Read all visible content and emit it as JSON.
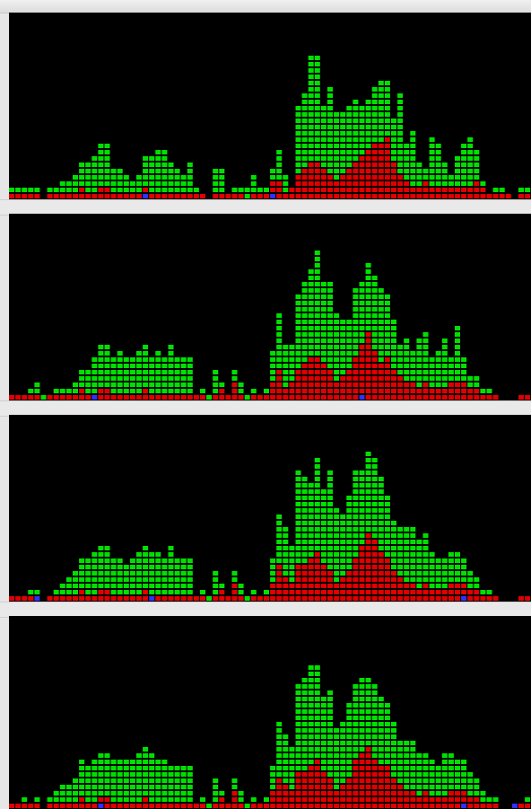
{
  "colors": {
    "background": "#000000",
    "stack_base": "#e00000",
    "stack_top": "#00e000",
    "marker": "#3030ff",
    "divider": "#e9e9e9"
  },
  "chart_data": [
    {
      "type": "bar",
      "stacked": true,
      "grid": false,
      "series": [
        {
          "values": [
            1,
            1,
            1,
            1,
            1,
            0,
            1,
            1,
            1,
            1,
            1,
            2,
            1,
            1,
            2,
            2,
            1,
            1,
            1,
            1,
            1,
            2,
            1,
            1,
            1,
            1,
            1,
            1,
            1,
            1,
            1,
            0,
            1,
            1,
            1,
            1,
            1,
            0,
            1,
            1,
            1,
            3,
            3,
            1,
            2,
            4,
            5,
            6,
            6,
            5,
            4,
            3,
            4,
            5,
            6,
            7,
            8,
            9,
            9,
            10,
            6,
            4,
            3,
            2,
            2,
            3,
            2,
            2,
            2,
            2,
            2,
            2,
            2,
            3,
            2,
            1,
            1,
            1,
            1,
            0,
            1,
            1
          ]
        },
        {
          "values": [
            1,
            1,
            1,
            1,
            1,
            0,
            1,
            1,
            2,
            2,
            3,
            4,
            5,
            6,
            7,
            7,
            4,
            4,
            3,
            2,
            3,
            5,
            6,
            7,
            7,
            5,
            4,
            3,
            5,
            1,
            0,
            0,
            4,
            4,
            0,
            1,
            1,
            2,
            3,
            1,
            1,
            2,
            5,
            3,
            0,
            11,
            12,
            17,
            17,
            10,
            14,
            11,
            10,
            10,
            10,
            8,
            8,
            9,
            10,
            9,
            7,
            13,
            6,
            9,
            4,
            2,
            8,
            7,
            4,
            2,
            5,
            7,
            8,
            5,
            1,
            0,
            1,
            1,
            0,
            0,
            1,
            1
          ]
        }
      ],
      "markers": [
        0,
        0,
        0,
        0,
        0,
        0,
        0,
        0,
        0,
        0,
        0,
        0,
        0,
        0,
        0,
        0,
        0,
        0,
        0,
        0,
        0,
        1,
        0,
        0,
        0,
        0,
        0,
        0,
        0,
        0,
        0,
        0,
        0,
        0,
        0,
        0,
        0,
        0,
        0,
        0,
        0,
        1,
        0,
        0,
        0,
        0,
        0,
        0,
        0,
        0,
        0,
        0,
        0,
        0,
        0,
        0,
        0,
        0,
        0,
        0,
        0,
        0,
        0,
        0,
        0,
        0,
        0,
        0,
        0,
        0,
        0,
        0,
        0,
        0,
        0,
        0,
        0,
        0,
        0,
        0,
        0,
        0
      ],
      "ylim": [
        0,
        26
      ]
    },
    {
      "type": "bar",
      "stacked": true,
      "grid": false,
      "series": [
        {
          "values": [
            1,
            1,
            1,
            1,
            1,
            0,
            1,
            1,
            1,
            1,
            1,
            2,
            1,
            1,
            2,
            2,
            1,
            1,
            1,
            1,
            1,
            2,
            1,
            1,
            1,
            1,
            1,
            1,
            1,
            1,
            1,
            0,
            1,
            2,
            1,
            3,
            1,
            0,
            1,
            1,
            1,
            3,
            5,
            2,
            3,
            5,
            6,
            7,
            7,
            6,
            5,
            3,
            4,
            5,
            7,
            9,
            11,
            8,
            6,
            7,
            5,
            4,
            3,
            3,
            2,
            3,
            2,
            2,
            2,
            3,
            3,
            3,
            2,
            2,
            1,
            1,
            1,
            0,
            0,
            0,
            1,
            1
          ]
        },
        {
          "values": [
            0,
            0,
            0,
            1,
            2,
            1,
            0,
            1,
            1,
            1,
            2,
            3,
            4,
            6,
            7,
            7,
            6,
            7,
            6,
            6,
            7,
            7,
            6,
            7,
            6,
            8,
            6,
            6,
            6,
            0,
            1,
            1,
            4,
            1,
            0,
            2,
            2,
            1,
            1,
            0,
            1,
            5,
            9,
            7,
            6,
            12,
            13,
            14,
            17,
            13,
            14,
            11,
            9,
            8,
            11,
            10,
            11,
            12,
            12,
            10,
            8,
            5,
            7,
            5,
            8,
            8,
            5,
            6,
            8,
            4,
            9,
            4,
            2,
            2,
            1,
            1,
            0,
            0,
            0,
            0,
            0,
            0
          ]
        }
      ],
      "markers": [
        0,
        0,
        0,
        0,
        0,
        0,
        0,
        0,
        0,
        0,
        0,
        0,
        0,
        1,
        0,
        0,
        0,
        0,
        0,
        0,
        0,
        0,
        0,
        0,
        0,
        0,
        0,
        0,
        0,
        0,
        0,
        0,
        0,
        0,
        0,
        0,
        0,
        0,
        0,
        0,
        0,
        0,
        0,
        0,
        0,
        0,
        0,
        0,
        0,
        0,
        0,
        0,
        0,
        0,
        0,
        1,
        0,
        0,
        0,
        0,
        0,
        0,
        0,
        0,
        0,
        0,
        0,
        0,
        0,
        0,
        0,
        0,
        0,
        0,
        0,
        0,
        0,
        0,
        0,
        0,
        0,
        0
      ],
      "ylim": [
        0,
        26
      ]
    },
    {
      "type": "bar",
      "stacked": true,
      "grid": false,
      "series": [
        {
          "values": [
            1,
            1,
            1,
            1,
            1,
            0,
            1,
            1,
            1,
            1,
            1,
            2,
            1,
            1,
            2,
            2,
            1,
            1,
            1,
            1,
            1,
            2,
            1,
            1,
            1,
            1,
            1,
            1,
            1,
            1,
            1,
            0,
            1,
            2,
            1,
            3,
            1,
            0,
            1,
            1,
            1,
            3,
            6,
            4,
            3,
            6,
            6,
            7,
            8,
            6,
            5,
            3,
            4,
            5,
            7,
            9,
            11,
            10,
            8,
            7,
            5,
            4,
            3,
            3,
            2,
            3,
            2,
            2,
            2,
            3,
            3,
            3,
            2,
            2,
            1,
            1,
            1,
            0,
            0,
            0,
            1,
            1
          ]
        },
        {
          "values": [
            0,
            0,
            0,
            1,
            1,
            0,
            0,
            1,
            2,
            3,
            4,
            5,
            6,
            7,
            7,
            7,
            6,
            6,
            5,
            6,
            7,
            7,
            7,
            7,
            6,
            8,
            6,
            6,
            6,
            0,
            1,
            1,
            4,
            1,
            0,
            2,
            2,
            1,
            1,
            0,
            1,
            4,
            8,
            8,
            6,
            15,
            14,
            12,
            15,
            12,
            16,
            12,
            10,
            12,
            14,
            12,
            13,
            13,
            12,
            10,
            8,
            8,
            9,
            9,
            8,
            8,
            6,
            5,
            5,
            5,
            5,
            4,
            3,
            2,
            1,
            1,
            0,
            0,
            0,
            0,
            0,
            0
          ]
        }
      ],
      "markers": [
        0,
        0,
        0,
        0,
        1,
        0,
        0,
        0,
        0,
        0,
        0,
        0,
        0,
        0,
        0,
        0,
        0,
        0,
        0,
        0,
        0,
        0,
        1,
        0,
        0,
        0,
        0,
        0,
        0,
        0,
        0,
        0,
        0,
        0,
        0,
        0,
        0,
        0,
        0,
        0,
        0,
        0,
        0,
        0,
        0,
        0,
        0,
        0,
        0,
        0,
        0,
        0,
        0,
        0,
        0,
        0,
        0,
        0,
        0,
        0,
        0,
        0,
        0,
        0,
        0,
        0,
        0,
        0,
        0,
        0,
        0,
        1,
        0,
        0,
        0,
        0,
        0,
        0,
        0,
        0,
        0,
        0
      ],
      "ylim": [
        0,
        26
      ]
    },
    {
      "type": "bar",
      "stacked": true,
      "grid": false,
      "series": [
        {
          "values": [
            1,
            1,
            1,
            1,
            1,
            0,
            1,
            1,
            1,
            1,
            1,
            2,
            1,
            1,
            2,
            2,
            1,
            1,
            1,
            1,
            1,
            2,
            1,
            1,
            1,
            1,
            1,
            1,
            1,
            1,
            1,
            0,
            1,
            2,
            1,
            3,
            1,
            0,
            1,
            1,
            1,
            3,
            5,
            4,
            3,
            6,
            6,
            7,
            8,
            6,
            5,
            3,
            4,
            5,
            8,
            9,
            10,
            8,
            7,
            7,
            5,
            4,
            3,
            3,
            2,
            3,
            2,
            2,
            2,
            3,
            3,
            3,
            2,
            2,
            1,
            1,
            1,
            0,
            0,
            0,
            1,
            1
          ]
        },
        {
          "values": [
            0,
            0,
            1,
            0,
            1,
            0,
            1,
            2,
            3,
            3,
            4,
            6,
            6,
            7,
            7,
            7,
            7,
            7,
            7,
            7,
            8,
            8,
            8,
            7,
            7,
            6,
            6,
            6,
            6,
            0,
            1,
            1,
            4,
            1,
            0,
            2,
            2,
            1,
            1,
            0,
            1,
            4,
            9,
            8,
            7,
            14,
            15,
            16,
            15,
            12,
            14,
            10,
            10,
            12,
            12,
            12,
            11,
            12,
            11,
            10,
            9,
            7,
            8,
            8,
            7,
            6,
            6,
            5,
            7,
            6,
            5,
            5,
            4,
            3,
            2,
            1,
            1,
            0,
            0,
            1,
            0,
            1
          ]
        }
      ],
      "markers": [
        0,
        0,
        0,
        0,
        0,
        0,
        0,
        0,
        0,
        0,
        0,
        0,
        0,
        0,
        1,
        0,
        0,
        0,
        0,
        0,
        0,
        0,
        0,
        0,
        0,
        0,
        0,
        0,
        0,
        0,
        0,
        0,
        0,
        0,
        0,
        0,
        0,
        0,
        0,
        0,
        0,
        0,
        0,
        0,
        0,
        0,
        0,
        0,
        0,
        0,
        0,
        0,
        0,
        0,
        0,
        0,
        0,
        0,
        0,
        0,
        0,
        0,
        0,
        0,
        0,
        0,
        0,
        0,
        0,
        0,
        0,
        1,
        0,
        0,
        0,
        0,
        0,
        0,
        0,
        1,
        0,
        0
      ],
      "ylim": [
        0,
        26
      ]
    }
  ]
}
